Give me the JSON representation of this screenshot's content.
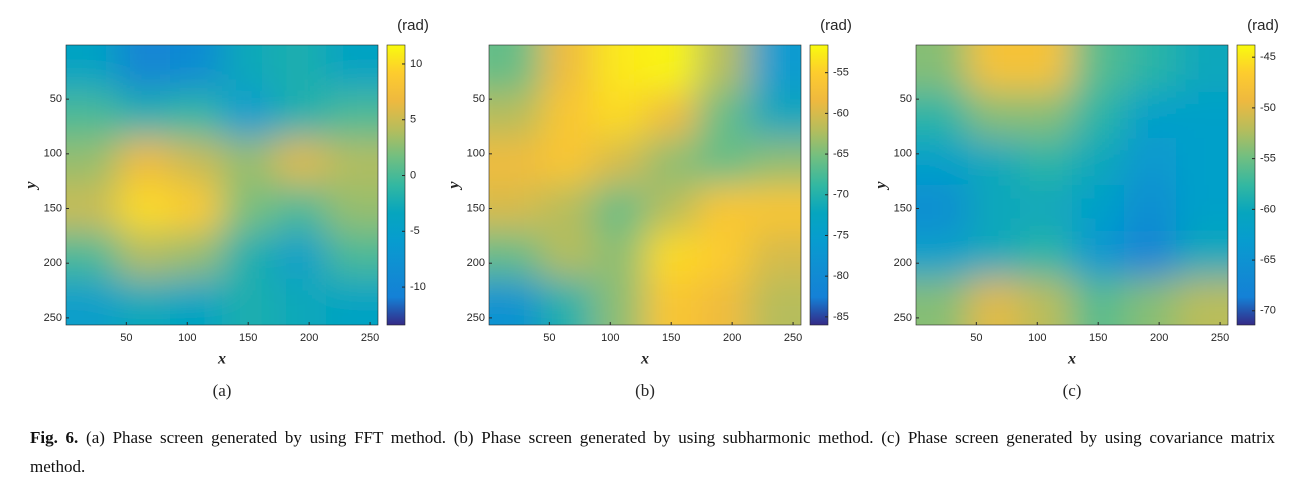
{
  "chart_data": [
    {
      "type": "heatmap",
      "panel_label": "(a)",
      "xlabel": "x",
      "ylabel": "y",
      "xlim": [
        0.5,
        256.5
      ],
      "ylim": [
        0.5,
        256.5
      ],
      "y_reversed": true,
      "xticks": [
        50,
        100,
        150,
        200,
        250
      ],
      "yticks": [
        50,
        100,
        150,
        200,
        250
      ],
      "colormap": "parula",
      "values": [
        [
          -4,
          -10,
          -9,
          -3,
          -2,
          -4
        ],
        [
          0,
          -2,
          -1,
          -6,
          -2,
          0
        ],
        [
          3,
          7,
          5,
          3,
          6,
          4
        ],
        [
          5,
          10,
          9,
          2,
          0,
          3
        ],
        [
          0,
          4,
          3,
          -2,
          -5,
          0
        ],
        [
          -5,
          -3,
          -4,
          -2,
          -3,
          -4
        ]
      ],
      "colorbar": {
        "label": "(rad)",
        "clim": [
          -13.4,
          11.7
        ],
        "ticks": [
          10,
          5,
          0,
          -5,
          -10
        ]
      }
    },
    {
      "type": "heatmap",
      "panel_label": "(b)",
      "xlabel": "x",
      "ylabel": "y",
      "xlim": [
        0.5,
        256.5
      ],
      "ylim": [
        0.5,
        256.5
      ],
      "y_reversed": true,
      "xticks": [
        50,
        100,
        150,
        200,
        250
      ],
      "yticks": [
        50,
        100,
        150,
        200,
        250
      ],
      "colormap": "parula",
      "values": [
        [
          -66,
          -58,
          -53,
          -52,
          -62,
          -76
        ],
        [
          -62,
          -56,
          -54,
          -58,
          -66,
          -72
        ],
        [
          -58,
          -56,
          -60,
          -64,
          -66,
          -64
        ],
        [
          -60,
          -62,
          -66,
          -62,
          -56,
          -56
        ],
        [
          -66,
          -62,
          -64,
          -54,
          -55,
          -60
        ],
        [
          -78,
          -70,
          -64,
          -56,
          -58,
          -62
        ]
      ],
      "colorbar": {
        "label": "(rad)",
        "clim": [
          -86,
          -51.6
        ],
        "ticks": [
          -55,
          -60,
          -65,
          -70,
          -75,
          -80,
          -85
        ]
      }
    },
    {
      "type": "heatmap",
      "panel_label": "(c)",
      "xlabel": "x",
      "ylabel": "y",
      "xlim": [
        0.5,
        256.5
      ],
      "ylim": [
        0.5,
        256.5
      ],
      "y_reversed": true,
      "xticks": [
        50,
        100,
        150,
        200,
        250
      ],
      "yticks": [
        50,
        100,
        150,
        200,
        250
      ],
      "colormap": "parula",
      "values": [
        [
          -54,
          -48,
          -48,
          -56,
          -58,
          -60
        ],
        [
          -58,
          -54,
          -54,
          -58,
          -62,
          -62
        ],
        [
          -62,
          -60,
          -58,
          -60,
          -64,
          -62
        ],
        [
          -66,
          -60,
          -60,
          -62,
          -66,
          -62
        ],
        [
          -62,
          -60,
          -58,
          -64,
          -68,
          -60
        ],
        [
          -54,
          -50,
          -52,
          -56,
          -54,
          -52
        ]
      ],
      "colorbar": {
        "label": "(rad)",
        "clim": [
          -71.4,
          -43.8
        ],
        "ticks": [
          -45,
          -50,
          -55,
          -60,
          -65,
          -70
        ]
      }
    }
  ],
  "caption": {
    "label": "Fig. 6.",
    "text": "(a) Phase screen generated by using FFT method. (b) Phase screen generated by using subharmonic method. (c) Phase screen generated by using covariance matrix method."
  }
}
